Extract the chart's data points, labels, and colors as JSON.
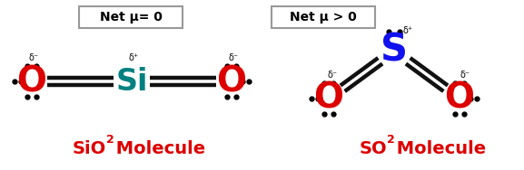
{
  "bg_color": "#ffffff",
  "left_box_text": "Net μ= 0",
  "right_box_text": "Net μ > 0",
  "sio2_label_parts": [
    "SiO",
    "2",
    " Molecule"
  ],
  "so2_label_parts": [
    "SO",
    "2",
    " Molecule"
  ],
  "O_color": "#dd0000",
  "Si_color": "#008080",
  "S_color": "#1111ee",
  "bond_color": "#111111",
  "delta_minus": "δ⁻",
  "delta_plus": "δ⁺",
  "figsize": [
    5.77,
    1.88
  ],
  "dpi": 100
}
